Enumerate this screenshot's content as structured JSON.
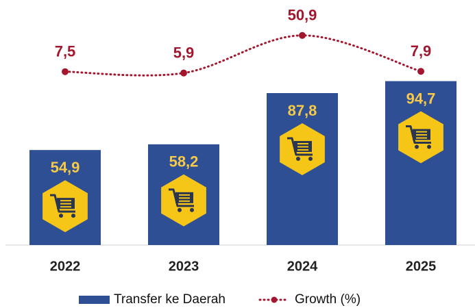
{
  "chart_data": {
    "type": "bar",
    "categories": [
      "2022",
      "2023",
      "2024",
      "2025"
    ],
    "series": [
      {
        "name": "Transfer ke Daerah",
        "type": "bar",
        "color": "#2f4f94",
        "label_color": "#f7c948",
        "values": [
          54.9,
          58.2,
          87.8,
          94.7
        ],
        "value_labels": [
          "54,9",
          "58,2",
          "87,8",
          "94,7"
        ]
      },
      {
        "name": "Growth (%)",
        "type": "line",
        "axis": "y2",
        "color": "#a3172e",
        "label_color": "#a3172e",
        "values": [
          7.5,
          5.9,
          50.9,
          7.9
        ],
        "value_labels": [
          "7,5",
          "5,9",
          "50,9",
          "7,9"
        ]
      }
    ],
    "ylim": [
      0,
      140
    ],
    "y2lim": [
      -200,
      90
    ],
    "legend": "bottom"
  }
}
